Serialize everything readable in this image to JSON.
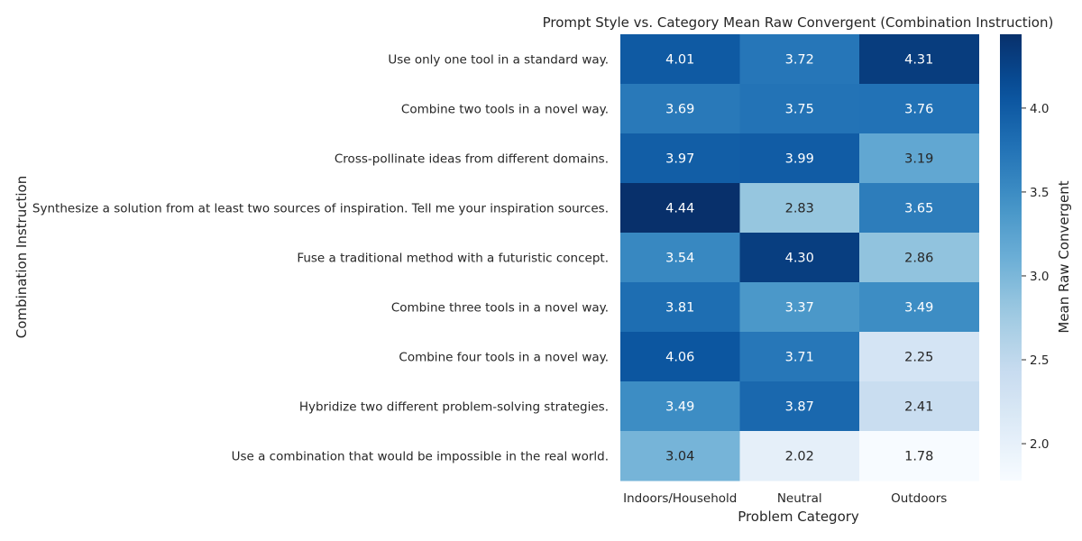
{
  "chart_data": {
    "type": "heatmap",
    "title": "Prompt Style vs. Category Mean Raw Convergent (Combination Instruction)",
    "xlabel": "Problem Category",
    "ylabel": "Combination Instruction",
    "colorbar_label": "Mean Raw Convergent",
    "colormap": "Blues",
    "color_range": [
      1.78,
      4.44
    ],
    "colorbar_ticks": [
      2.0,
      2.5,
      3.0,
      3.5,
      4.0
    ],
    "colorbar_tick_labels": [
      "2.0",
      "2.5",
      "3.0",
      "3.5",
      "4.0"
    ],
    "columns": [
      "Indoors/Household",
      "Neutral",
      "Outdoors"
    ],
    "rows": [
      "Use only one tool in a standard way.",
      "Combine two tools in a novel way.",
      "Cross-pollinate ideas from different domains.",
      "Synthesize a solution from at least two sources of inspiration. Tell me your inspiration sources.",
      "Fuse a traditional method with a futuristic concept.",
      "Combine three tools in a novel way.",
      "Combine four tools in a novel way.",
      "Hybridize two different problem-solving strategies.",
      "Use a combination that would be impossible in the real world."
    ],
    "values": [
      [
        4.01,
        3.72,
        4.31
      ],
      [
        3.69,
        3.75,
        3.76
      ],
      [
        3.97,
        3.99,
        3.19
      ],
      [
        4.44,
        2.83,
        3.65
      ],
      [
        3.54,
        4.3,
        2.86
      ],
      [
        3.81,
        3.37,
        3.49
      ],
      [
        4.06,
        3.71,
        2.25
      ],
      [
        3.49,
        3.87,
        2.41
      ],
      [
        3.04,
        2.02,
        1.78
      ]
    ],
    "value_labels": [
      [
        "4.01",
        "3.72",
        "4.31"
      ],
      [
        "3.69",
        "3.75",
        "3.76"
      ],
      [
        "3.97",
        "3.99",
        "3.19"
      ],
      [
        "4.44",
        "2.83",
        "3.65"
      ],
      [
        "3.54",
        "4.30",
        "2.86"
      ],
      [
        "3.81",
        "3.37",
        "3.49"
      ],
      [
        "4.06",
        "3.71",
        "2.25"
      ],
      [
        "3.49",
        "3.87",
        "2.41"
      ],
      [
        "3.04",
        "2.02",
        "1.78"
      ]
    ]
  }
}
